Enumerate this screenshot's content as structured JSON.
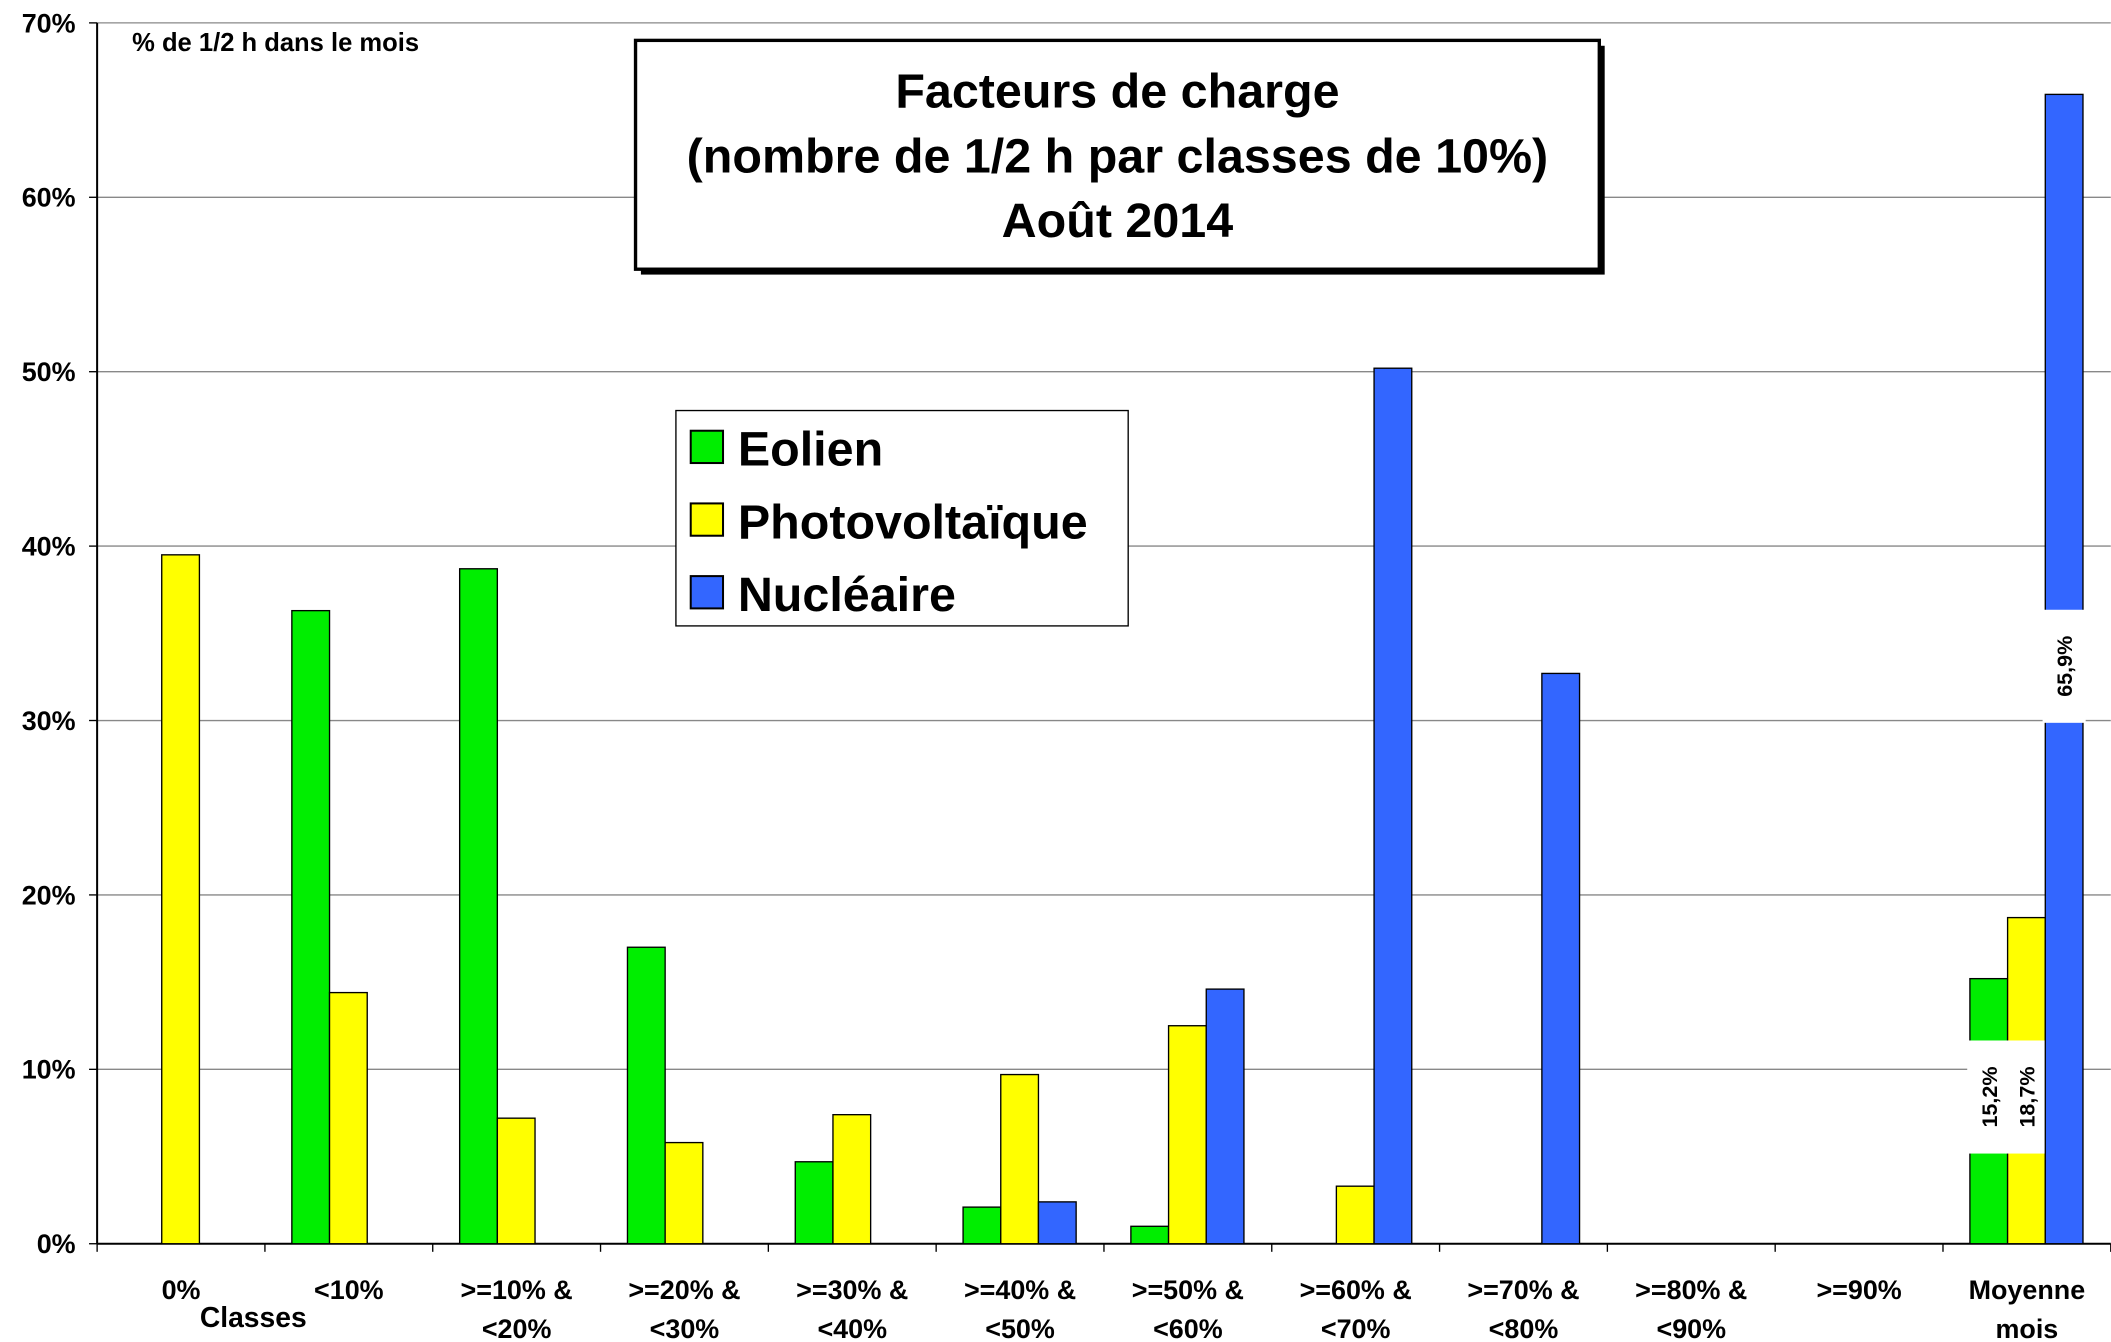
{
  "chart_data": {
    "type": "bar",
    "title": [
      "Facteurs de charge",
      "(nombre de 1/2 h par classes de 10%)",
      "Août 2014"
    ],
    "y_label": "% de 1/2 h dans le mois",
    "x_label": "Classes",
    "categories": [
      "0%",
      "<10%",
      ">=10% &\n<20%",
      ">=20% &\n<30%",
      ">=30% &\n<40%",
      ">=40% &\n<50%",
      ">=50% &\n<60%",
      ">=60% &\n<70%",
      ">=70% &\n<80%",
      ">=80% &\n<90%",
      ">=90%",
      "Moyenne\nmois"
    ],
    "series": [
      {
        "name": "Eolien",
        "color": "#00ee00",
        "values": [
          null,
          36.3,
          38.7,
          17.0,
          4.7,
          2.1,
          1.0,
          null,
          null,
          null,
          null,
          15.2
        ],
        "value_labels": {
          "11": "15,2%"
        }
      },
      {
        "name": "Photovoltaïque",
        "color": "#ffff00",
        "values": [
          39.5,
          14.4,
          7.2,
          5.8,
          7.4,
          9.7,
          12.5,
          3.3,
          null,
          null,
          null,
          18.7
        ],
        "value_labels": {
          "11": "18,7%"
        }
      },
      {
        "name": "Nucléaire",
        "color": "#3366ff",
        "values": [
          null,
          null,
          null,
          null,
          null,
          2.4,
          14.6,
          50.2,
          32.7,
          null,
          null,
          65.9
        ],
        "value_labels": {
          "11": "65,9%"
        }
      }
    ],
    "ylim": [
      0,
      70
    ],
    "yticks": [
      {
        "value": 0,
        "label": "0%"
      },
      {
        "value": 10,
        "label": "10%"
      },
      {
        "value": 20,
        "label": "20%"
      },
      {
        "value": 30,
        "label": "30%"
      },
      {
        "value": 40,
        "label": "40%"
      },
      {
        "value": 50,
        "label": "50%"
      },
      {
        "value": 60,
        "label": "60%"
      },
      {
        "value": 70,
        "label": "70%"
      }
    ],
    "grid": true
  }
}
